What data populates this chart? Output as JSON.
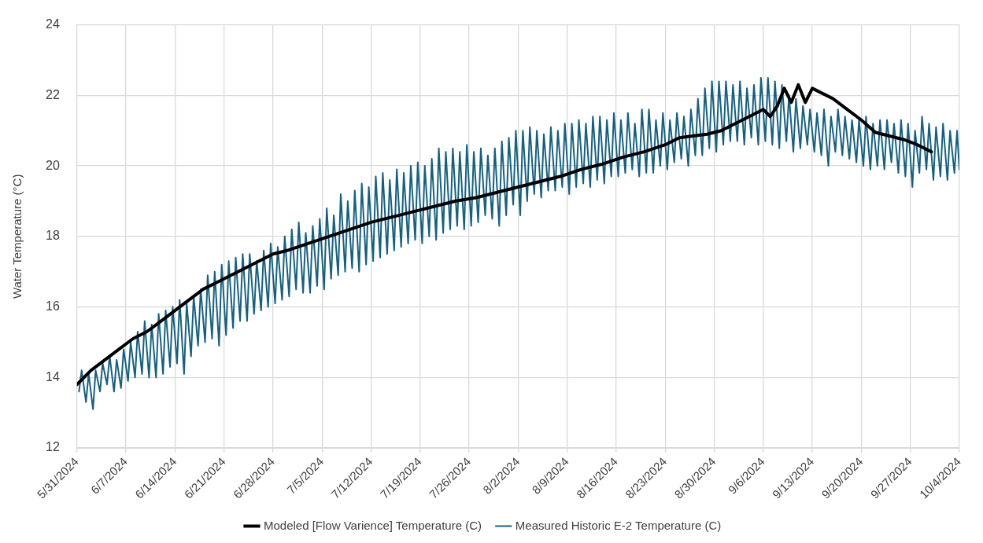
{
  "chart_data": {
    "type": "line",
    "ylabel": "Water Temperature (°C)",
    "xlim": [
      "2024-05-31",
      "2024-10-04"
    ],
    "xticks": [
      {
        "value": "2024-05-31",
        "label": "5/31/2024"
      },
      {
        "value": "2024-06-07",
        "label": "6/7/2024"
      },
      {
        "value": "2024-06-14",
        "label": "6/14/2024"
      },
      {
        "value": "2024-06-21",
        "label": "6/21/2024"
      },
      {
        "value": "2024-06-28",
        "label": "6/28/2024"
      },
      {
        "value": "2024-07-05",
        "label": "7/5/2024"
      },
      {
        "value": "2024-07-12",
        "label": "7/12/2024"
      },
      {
        "value": "2024-07-19",
        "label": "7/19/2024"
      },
      {
        "value": "2024-07-26",
        "label": "7/26/2024"
      },
      {
        "value": "2024-08-02",
        "label": "8/2/2024"
      },
      {
        "value": "2024-08-09",
        "label": "8/9/2024"
      },
      {
        "value": "2024-08-16",
        "label": "8/16/2024"
      },
      {
        "value": "2024-08-23",
        "label": "8/23/2024"
      },
      {
        "value": "2024-08-30",
        "label": "8/30/2024"
      },
      {
        "value": "2024-09-06",
        "label": "9/6/2024"
      },
      {
        "value": "2024-09-13",
        "label": "9/13/2024"
      },
      {
        "value": "2024-09-20",
        "label": "9/20/2024"
      },
      {
        "value": "2024-09-27",
        "label": "9/27/2024"
      },
      {
        "value": "2024-10-04",
        "label": "10/4/2024"
      }
    ],
    "ylim": [
      12,
      24
    ],
    "yticks": [
      12,
      14,
      16,
      18,
      20,
      22,
      24
    ],
    "grid": true,
    "legend": "bottom",
    "marker": "none",
    "line_style": "solid",
    "series": [
      {
        "name": "Measured Historic E-2 Temperature (C)",
        "color": "#156082",
        "x": [
          "2024-05-31T07:00",
          "2024-05-31T16:00",
          "2024-06-01T07:00",
          "2024-06-01T16:00",
          "2024-06-02T07:00",
          "2024-06-02T16:00",
          "2024-06-03T07:00",
          "2024-06-03T16:00",
          "2024-06-04T07:00",
          "2024-06-04T16:00",
          "2024-06-05T07:00",
          "2024-06-05T16:00",
          "2024-06-06T07:00",
          "2024-06-06T16:00",
          "2024-06-07T07:00",
          "2024-06-07T16:00",
          "2024-06-08T07:00",
          "2024-06-08T16:00",
          "2024-06-09T07:00",
          "2024-06-09T16:00",
          "2024-06-10T07:00",
          "2024-06-10T16:00",
          "2024-06-11T07:00",
          "2024-06-11T16:00",
          "2024-06-12T07:00",
          "2024-06-12T16:00",
          "2024-06-13T07:00",
          "2024-06-13T16:00",
          "2024-06-14T07:00",
          "2024-06-14T16:00",
          "2024-06-15T07:00",
          "2024-06-15T16:00",
          "2024-06-16T07:00",
          "2024-06-16T16:00",
          "2024-06-17T07:00",
          "2024-06-17T16:00",
          "2024-06-18T07:00",
          "2024-06-18T16:00",
          "2024-06-19T07:00",
          "2024-06-19T16:00",
          "2024-06-20T07:00",
          "2024-06-20T16:00",
          "2024-06-21T07:00",
          "2024-06-21T16:00",
          "2024-06-22T07:00",
          "2024-06-22T16:00",
          "2024-06-23T07:00",
          "2024-06-23T16:00",
          "2024-06-24T07:00",
          "2024-06-24T16:00",
          "2024-06-25T07:00",
          "2024-06-25T16:00",
          "2024-06-26T07:00",
          "2024-06-26T16:00",
          "2024-06-27T07:00",
          "2024-06-27T16:00",
          "2024-06-28T07:00",
          "2024-06-28T16:00",
          "2024-06-29T07:00",
          "2024-06-29T16:00",
          "2024-06-30T07:00",
          "2024-06-30T16:00",
          "2024-07-01T07:00",
          "2024-07-01T16:00",
          "2024-07-02T07:00",
          "2024-07-02T16:00",
          "2024-07-03T07:00",
          "2024-07-03T16:00",
          "2024-07-04T07:00",
          "2024-07-04T16:00",
          "2024-07-05T07:00",
          "2024-07-05T16:00",
          "2024-07-06T07:00",
          "2024-07-06T16:00",
          "2024-07-07T07:00",
          "2024-07-07T16:00",
          "2024-07-08T07:00",
          "2024-07-08T16:00",
          "2024-07-09T07:00",
          "2024-07-09T16:00",
          "2024-07-10T07:00",
          "2024-07-10T16:00",
          "2024-07-11T07:00",
          "2024-07-11T16:00",
          "2024-07-12T07:00",
          "2024-07-12T16:00",
          "2024-07-13T07:00",
          "2024-07-13T16:00",
          "2024-07-14T07:00",
          "2024-07-14T16:00",
          "2024-07-15T07:00",
          "2024-07-15T16:00",
          "2024-07-16T07:00",
          "2024-07-16T16:00",
          "2024-07-17T07:00",
          "2024-07-17T16:00",
          "2024-07-18T07:00",
          "2024-07-18T16:00",
          "2024-07-19T07:00",
          "2024-07-19T16:00",
          "2024-07-20T07:00",
          "2024-07-20T16:00",
          "2024-07-21T07:00",
          "2024-07-21T16:00",
          "2024-07-22T07:00",
          "2024-07-22T16:00",
          "2024-07-23T07:00",
          "2024-07-23T16:00",
          "2024-07-24T07:00",
          "2024-07-24T16:00",
          "2024-07-25T07:00",
          "2024-07-25T16:00",
          "2024-07-26T07:00",
          "2024-07-26T16:00",
          "2024-07-27T07:00",
          "2024-07-27T16:00",
          "2024-07-28T07:00",
          "2024-07-28T16:00",
          "2024-07-29T07:00",
          "2024-07-29T16:00",
          "2024-07-30T07:00",
          "2024-07-30T16:00",
          "2024-07-31T07:00",
          "2024-07-31T16:00",
          "2024-08-01T07:00",
          "2024-08-01T16:00",
          "2024-08-02T07:00",
          "2024-08-02T16:00",
          "2024-08-03T07:00",
          "2024-08-03T16:00",
          "2024-08-04T07:00",
          "2024-08-04T16:00",
          "2024-08-05T07:00",
          "2024-08-05T16:00",
          "2024-08-06T07:00",
          "2024-08-06T16:00",
          "2024-08-07T07:00",
          "2024-08-07T16:00",
          "2024-08-08T07:00",
          "2024-08-08T16:00",
          "2024-08-09T07:00",
          "2024-08-09T16:00",
          "2024-08-10T07:00",
          "2024-08-10T16:00",
          "2024-08-11T07:00",
          "2024-08-11T16:00",
          "2024-08-12T07:00",
          "2024-08-12T16:00",
          "2024-08-13T07:00",
          "2024-08-13T16:00",
          "2024-08-14T07:00",
          "2024-08-14T16:00",
          "2024-08-15T07:00",
          "2024-08-15T16:00",
          "2024-08-16T07:00",
          "2024-08-16T16:00",
          "2024-08-17T07:00",
          "2024-08-17T16:00",
          "2024-08-18T07:00",
          "2024-08-18T16:00",
          "2024-08-19T07:00",
          "2024-08-19T16:00",
          "2024-08-20T07:00",
          "2024-08-20T16:00",
          "2024-08-21T07:00",
          "2024-08-21T16:00",
          "2024-08-22T07:00",
          "2024-08-22T16:00",
          "2024-08-23T07:00",
          "2024-08-23T16:00",
          "2024-08-24T07:00",
          "2024-08-24T16:00",
          "2024-08-25T07:00",
          "2024-08-25T16:00",
          "2024-08-26T07:00",
          "2024-08-26T16:00",
          "2024-08-27T07:00",
          "2024-08-27T16:00",
          "2024-08-28T07:00",
          "2024-08-28T16:00",
          "2024-08-29T07:00",
          "2024-08-29T16:00",
          "2024-08-30T07:00",
          "2024-08-30T16:00",
          "2024-08-31T07:00",
          "2024-08-31T16:00",
          "2024-09-01T07:00",
          "2024-09-01T16:00",
          "2024-09-02T07:00",
          "2024-09-02T16:00",
          "2024-09-03T07:00",
          "2024-09-03T16:00",
          "2024-09-04T07:00",
          "2024-09-04T16:00",
          "2024-09-05T07:00",
          "2024-09-05T16:00",
          "2024-09-06T07:00",
          "2024-09-06T16:00",
          "2024-09-07T07:00",
          "2024-09-07T16:00",
          "2024-09-08T07:00",
          "2024-09-08T16:00",
          "2024-09-09T07:00",
          "2024-09-09T16:00",
          "2024-09-10T07:00",
          "2024-09-10T16:00",
          "2024-09-11T07:00",
          "2024-09-11T16:00",
          "2024-09-12T07:00",
          "2024-09-12T16:00",
          "2024-09-13T07:00",
          "2024-09-13T16:00",
          "2024-09-14T07:00",
          "2024-09-14T16:00",
          "2024-09-15T07:00",
          "2024-09-15T16:00",
          "2024-09-16T07:00",
          "2024-09-16T16:00",
          "2024-09-17T07:00",
          "2024-09-17T16:00",
          "2024-09-18T07:00",
          "2024-09-18T16:00",
          "2024-09-19T07:00",
          "2024-09-19T16:00",
          "2024-09-20T07:00",
          "2024-09-20T16:00",
          "2024-09-21T07:00",
          "2024-09-21T16:00",
          "2024-09-22T07:00",
          "2024-09-22T16:00",
          "2024-09-23T07:00",
          "2024-09-23T16:00",
          "2024-09-24T07:00",
          "2024-09-24T16:00",
          "2024-09-25T07:00",
          "2024-09-25T16:00",
          "2024-09-26T07:00",
          "2024-09-26T16:00",
          "2024-09-27T07:00",
          "2024-09-27T16:00",
          "2024-09-28T07:00",
          "2024-09-28T16:00",
          "2024-09-29T07:00",
          "2024-09-29T16:00",
          "2024-09-30T07:00",
          "2024-09-30T16:00",
          "2024-10-01T07:00",
          "2024-10-01T16:00",
          "2024-10-02T07:00",
          "2024-10-02T16:00",
          "2024-10-03T07:00",
          "2024-10-03T16:00",
          "2024-10-04T00:00"
        ],
        "values": [
          13.6,
          14.2,
          13.3,
          14.1,
          13.1,
          14.2,
          13.6,
          14.4,
          13.8,
          14.6,
          13.6,
          14.5,
          13.7,
          14.8,
          13.9,
          15.0,
          14.0,
          15.3,
          14.1,
          15.6,
          14.0,
          15.5,
          14.0,
          15.8,
          14.1,
          15.9,
          14.3,
          16.0,
          14.4,
          16.2,
          14.1,
          16.1,
          14.6,
          16.3,
          14.9,
          16.5,
          15.0,
          16.9,
          15.1,
          17.0,
          14.9,
          17.2,
          15.2,
          17.3,
          15.4,
          17.4,
          15.6,
          17.5,
          15.6,
          17.5,
          15.8,
          17.3,
          15.9,
          17.6,
          16.0,
          17.8,
          16.1,
          17.7,
          16.2,
          18.0,
          16.3,
          18.2,
          16.5,
          18.4,
          16.4,
          18.1,
          16.4,
          18.3,
          16.6,
          18.5,
          16.5,
          18.8,
          16.8,
          18.6,
          16.9,
          19.2,
          17.0,
          19.0,
          17.1,
          19.3,
          17.0,
          19.5,
          17.2,
          19.4,
          17.3,
          19.7,
          17.4,
          19.8,
          17.5,
          19.6,
          17.6,
          19.9,
          17.7,
          19.8,
          17.8,
          20.0,
          17.9,
          20.1,
          17.8,
          20.0,
          18.0,
          20.2,
          17.9,
          20.5,
          18.1,
          20.4,
          18.2,
          20.5,
          18.3,
          20.4,
          18.2,
          20.6,
          18.3,
          20.4,
          18.4,
          20.5,
          18.6,
          20.3,
          18.5,
          20.5,
          18.3,
          20.7,
          18.6,
          20.8,
          18.9,
          21.0,
          18.6,
          21.0,
          19.0,
          21.1,
          19.2,
          21.0,
          19.1,
          20.9,
          19.3,
          21.1,
          19.3,
          21.0,
          19.4,
          21.2,
          19.2,
          21.2,
          19.4,
          21.3,
          19.5,
          21.2,
          19.4,
          21.4,
          19.6,
          21.4,
          19.5,
          21.3,
          19.7,
          21.5,
          19.7,
          21.3,
          19.8,
          21.5,
          19.9,
          21.2,
          19.7,
          21.6,
          19.8,
          21.6,
          19.8,
          21.3,
          20.0,
          21.5,
          19.9,
          21.3,
          20.1,
          21.5,
          20.2,
          21.4,
          20.0,
          21.6,
          20.3,
          21.9,
          20.3,
          22.2,
          20.5,
          22.4,
          20.4,
          22.4,
          20.6,
          22.4,
          20.7,
          22.3,
          20.7,
          22.4,
          20.6,
          22.2,
          20.8,
          22.3,
          20.6,
          22.5,
          20.7,
          22.5,
          20.6,
          22.4,
          20.5,
          22.3,
          20.7,
          22.0,
          20.4,
          21.9,
          20.5,
          21.7,
          20.6,
          21.6,
          20.4,
          21.5,
          20.3,
          21.6,
          20.0,
          21.4,
          20.4,
          21.6,
          20.3,
          21.4,
          20.2,
          21.3,
          20.1,
          21.3,
          20.0,
          21.4,
          19.9,
          21.2,
          20.0,
          21.3,
          19.9,
          21.3,
          20.1,
          21.2,
          19.8,
          21.3,
          19.7,
          21.2,
          19.4,
          21.0,
          19.8,
          21.4,
          19.9,
          21.2,
          19.6,
          21.1,
          19.7,
          21.2,
          19.6,
          21.0,
          19.8,
          21.0,
          19.9
        ]
      },
      {
        "name": "Modeled [Flow Varience] Temperature (C)",
        "color": "#000000",
        "x": [
          "2024-05-31",
          "2024-06-02",
          "2024-06-04",
          "2024-06-06",
          "2024-06-08",
          "2024-06-10",
          "2024-06-12",
          "2024-06-14",
          "2024-06-16",
          "2024-06-18",
          "2024-06-20",
          "2024-06-22",
          "2024-06-24",
          "2024-06-26",
          "2024-06-28",
          "2024-06-30",
          "2024-07-03",
          "2024-07-06",
          "2024-07-09",
          "2024-07-12",
          "2024-07-15",
          "2024-07-18",
          "2024-07-21",
          "2024-07-24",
          "2024-07-27",
          "2024-07-30",
          "2024-08-02",
          "2024-08-05",
          "2024-08-08",
          "2024-08-11",
          "2024-08-14",
          "2024-08-17",
          "2024-08-20",
          "2024-08-23",
          "2024-08-25",
          "2024-08-27",
          "2024-08-29",
          "2024-08-31",
          "2024-09-02",
          "2024-09-04",
          "2024-09-06",
          "2024-09-07",
          "2024-09-08",
          "2024-09-09",
          "2024-09-10",
          "2024-09-11",
          "2024-09-12",
          "2024-09-13",
          "2024-09-14",
          "2024-09-16",
          "2024-09-18",
          "2024-09-20",
          "2024-09-22",
          "2024-09-24",
          "2024-09-26",
          "2024-09-28",
          "2024-09-30"
        ],
        "values": [
          13.8,
          14.2,
          14.5,
          14.8,
          15.1,
          15.3,
          15.6,
          15.9,
          16.2,
          16.5,
          16.7,
          16.9,
          17.1,
          17.3,
          17.5,
          17.6,
          17.8,
          18.0,
          18.2,
          18.4,
          18.55,
          18.7,
          18.85,
          19.0,
          19.1,
          19.25,
          19.4,
          19.55,
          19.7,
          19.9,
          20.05,
          20.25,
          20.4,
          20.6,
          20.8,
          20.85,
          20.9,
          21.0,
          21.2,
          21.4,
          21.6,
          21.4,
          21.7,
          22.2,
          21.8,
          22.3,
          21.8,
          22.2,
          22.1,
          21.9,
          21.6,
          21.3,
          20.95,
          20.85,
          20.75,
          20.6,
          20.4
        ]
      }
    ]
  }
}
